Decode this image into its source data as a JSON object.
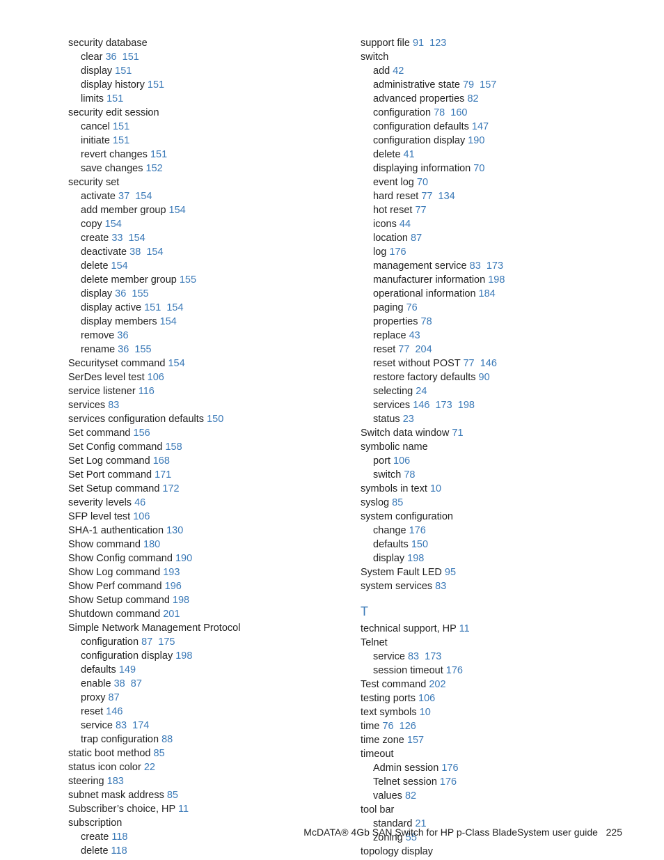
{
  "footer": {
    "text": "McDATA® 4Gb SAN Switch for HP p-Class BladeSystem user guide",
    "pageNum": "225"
  },
  "link_color": "#3a79b7",
  "text_color": "#222222",
  "leftCol": [
    {
      "t": "h",
      "label": "security database"
    },
    {
      "t": "s",
      "label": "clear",
      "pg": [
        "36",
        "151"
      ]
    },
    {
      "t": "s",
      "label": "display",
      "pg": [
        "151"
      ]
    },
    {
      "t": "s",
      "label": "display history",
      "pg": [
        "151"
      ]
    },
    {
      "t": "s",
      "label": "limits",
      "pg": [
        "151"
      ]
    },
    {
      "t": "h",
      "label": "security edit session"
    },
    {
      "t": "s",
      "label": "cancel",
      "pg": [
        "151"
      ]
    },
    {
      "t": "s",
      "label": "initiate",
      "pg": [
        "151"
      ]
    },
    {
      "t": "s",
      "label": "revert changes",
      "pg": [
        "151"
      ]
    },
    {
      "t": "s",
      "label": "save changes",
      "pg": [
        "152"
      ]
    },
    {
      "t": "h",
      "label": "security set"
    },
    {
      "t": "s",
      "label": "activate",
      "pg": [
        "37",
        "154"
      ]
    },
    {
      "t": "s",
      "label": "add member group",
      "pg": [
        "154"
      ]
    },
    {
      "t": "s",
      "label": "copy",
      "pg": [
        "154"
      ]
    },
    {
      "t": "s",
      "label": "create",
      "pg": [
        "33",
        "154"
      ]
    },
    {
      "t": "s",
      "label": "deactivate",
      "pg": [
        "38",
        "154"
      ]
    },
    {
      "t": "s",
      "label": "delete",
      "pg": [
        "154"
      ]
    },
    {
      "t": "s",
      "label": "delete member group",
      "pg": [
        "155"
      ]
    },
    {
      "t": "s",
      "label": "display",
      "pg": [
        "36",
        "155"
      ]
    },
    {
      "t": "s",
      "label": "display active",
      "pg": [
        "151",
        "154"
      ]
    },
    {
      "t": "s",
      "label": "display members",
      "pg": [
        "154"
      ]
    },
    {
      "t": "s",
      "label": "remove",
      "pg": [
        "36"
      ]
    },
    {
      "t": "s",
      "label": "rename",
      "pg": [
        "36",
        "155"
      ]
    },
    {
      "t": "e",
      "label": "Securityset command",
      "pg": [
        "154"
      ]
    },
    {
      "t": "e",
      "label": "SerDes level test",
      "pg": [
        "106"
      ]
    },
    {
      "t": "e",
      "label": "service listener",
      "pg": [
        "116"
      ]
    },
    {
      "t": "e",
      "label": "services",
      "pg": [
        "83"
      ]
    },
    {
      "t": "e",
      "label": "services configuration defaults",
      "pg": [
        "150"
      ]
    },
    {
      "t": "e",
      "label": "Set command",
      "pg": [
        "156"
      ]
    },
    {
      "t": "e",
      "label": "Set Config command",
      "pg": [
        "158"
      ]
    },
    {
      "t": "e",
      "label": "Set Log command",
      "pg": [
        "168"
      ]
    },
    {
      "t": "e",
      "label": "Set Port command",
      "pg": [
        "171"
      ]
    },
    {
      "t": "e",
      "label": "Set Setup command",
      "pg": [
        "172"
      ]
    },
    {
      "t": "e",
      "label": "severity levels",
      "pg": [
        "46"
      ]
    },
    {
      "t": "e",
      "label": "SFP level test",
      "pg": [
        "106"
      ]
    },
    {
      "t": "e",
      "label": "SHA-1 authentication",
      "pg": [
        "130"
      ]
    },
    {
      "t": "e",
      "label": "Show command",
      "pg": [
        "180"
      ]
    },
    {
      "t": "e",
      "label": "Show Config command",
      "pg": [
        "190"
      ]
    },
    {
      "t": "e",
      "label": "Show Log command",
      "pg": [
        "193"
      ]
    },
    {
      "t": "e",
      "label": "Show Perf command",
      "pg": [
        "196"
      ]
    },
    {
      "t": "e",
      "label": "Show Setup command",
      "pg": [
        "198"
      ]
    },
    {
      "t": "e",
      "label": "Shutdown command",
      "pg": [
        "201"
      ]
    },
    {
      "t": "h",
      "label": "Simple Network Management Protocol"
    },
    {
      "t": "s",
      "label": "configuration",
      "pg": [
        "87",
        "175"
      ]
    },
    {
      "t": "s",
      "label": "configuration display",
      "pg": [
        "198"
      ]
    },
    {
      "t": "s",
      "label": "defaults",
      "pg": [
        "149"
      ]
    },
    {
      "t": "s",
      "label": "enable",
      "pg": [
        "38",
        "87"
      ]
    },
    {
      "t": "s",
      "label": "proxy",
      "pg": [
        "87"
      ]
    },
    {
      "t": "s",
      "label": "reset",
      "pg": [
        "146"
      ]
    },
    {
      "t": "s",
      "label": "service",
      "pg": [
        "83",
        "174"
      ]
    },
    {
      "t": "s",
      "label": "trap configuration",
      "pg": [
        "88"
      ]
    },
    {
      "t": "e",
      "label": "static boot method",
      "pg": [
        "85"
      ]
    },
    {
      "t": "e",
      "label": "status icon color",
      "pg": [
        "22"
      ]
    },
    {
      "t": "e",
      "label": "steering",
      "pg": [
        "183"
      ]
    },
    {
      "t": "e",
      "label": "subnet mask address",
      "pg": [
        "85"
      ]
    },
    {
      "t": "e",
      "label": "Subscriber’s choice, HP",
      "pg": [
        "11"
      ]
    },
    {
      "t": "h",
      "label": "subscription"
    },
    {
      "t": "s",
      "label": "create",
      "pg": [
        "118"
      ]
    },
    {
      "t": "s",
      "label": "delete",
      "pg": [
        "118"
      ]
    }
  ],
  "rightCol": [
    {
      "t": "e",
      "label": "support file",
      "pg": [
        "91",
        "123"
      ]
    },
    {
      "t": "h",
      "label": "switch"
    },
    {
      "t": "s",
      "label": "add",
      "pg": [
        "42"
      ]
    },
    {
      "t": "s",
      "label": "administrative state",
      "pg": [
        "79",
        "157"
      ]
    },
    {
      "t": "s",
      "label": "advanced properties",
      "pg": [
        "82"
      ]
    },
    {
      "t": "s",
      "label": "configuration",
      "pg": [
        "78",
        "160"
      ]
    },
    {
      "t": "s",
      "label": "configuration defaults",
      "pg": [
        "147"
      ]
    },
    {
      "t": "s",
      "label": "configuration display",
      "pg": [
        "190"
      ]
    },
    {
      "t": "s",
      "label": "delete",
      "pg": [
        "41"
      ]
    },
    {
      "t": "s",
      "label": "displaying information",
      "pg": [
        "70"
      ]
    },
    {
      "t": "s",
      "label": "event log",
      "pg": [
        "70"
      ]
    },
    {
      "t": "s",
      "label": "hard reset",
      "pg": [
        "77",
        "134"
      ]
    },
    {
      "t": "s",
      "label": "hot reset",
      "pg": [
        "77"
      ]
    },
    {
      "t": "s",
      "label": "icons",
      "pg": [
        "44"
      ]
    },
    {
      "t": "s",
      "label": "location",
      "pg": [
        "87"
      ]
    },
    {
      "t": "s",
      "label": "log",
      "pg": [
        "176"
      ]
    },
    {
      "t": "s",
      "label": "management service",
      "pg": [
        "83",
        "173"
      ]
    },
    {
      "t": "s",
      "label": "manufacturer information",
      "pg": [
        "198"
      ]
    },
    {
      "t": "s",
      "label": "operational information",
      "pg": [
        "184"
      ]
    },
    {
      "t": "s",
      "label": "paging",
      "pg": [
        "76"
      ]
    },
    {
      "t": "s",
      "label": "properties",
      "pg": [
        "78"
      ]
    },
    {
      "t": "s",
      "label": "replace",
      "pg": [
        "43"
      ]
    },
    {
      "t": "s",
      "label": "reset",
      "pg": [
        "77",
        "204"
      ]
    },
    {
      "t": "s",
      "label": "reset without POST",
      "pg": [
        "77",
        "146"
      ]
    },
    {
      "t": "s",
      "label": "restore factory defaults",
      "pg": [
        "90"
      ]
    },
    {
      "t": "s",
      "label": "selecting",
      "pg": [
        "24"
      ]
    },
    {
      "t": "s",
      "label": "services",
      "pg": [
        "146",
        "173",
        "198"
      ]
    },
    {
      "t": "s",
      "label": "status",
      "pg": [
        "23"
      ]
    },
    {
      "t": "e",
      "label": "Switch data window",
      "pg": [
        "71"
      ]
    },
    {
      "t": "h",
      "label": "symbolic name"
    },
    {
      "t": "s",
      "label": "port",
      "pg": [
        "106"
      ]
    },
    {
      "t": "s",
      "label": "switch",
      "pg": [
        "78"
      ]
    },
    {
      "t": "e",
      "label": "symbols in text",
      "pg": [
        "10"
      ]
    },
    {
      "t": "e",
      "label": "syslog",
      "pg": [
        "85"
      ]
    },
    {
      "t": "h",
      "label": "system configuration"
    },
    {
      "t": "s",
      "label": "change",
      "pg": [
        "176"
      ]
    },
    {
      "t": "s",
      "label": "defaults",
      "pg": [
        "150"
      ]
    },
    {
      "t": "s",
      "label": "display",
      "pg": [
        "198"
      ]
    },
    {
      "t": "e",
      "label": "System Fault LED",
      "pg": [
        "95"
      ]
    },
    {
      "t": "e",
      "label": "system services",
      "pg": [
        "83"
      ]
    },
    {
      "t": "section",
      "label": "T"
    },
    {
      "t": "e",
      "label": "technical support, HP",
      "pg": [
        "11"
      ]
    },
    {
      "t": "h",
      "label": "Telnet"
    },
    {
      "t": "s",
      "label": "service",
      "pg": [
        "83",
        "173"
      ]
    },
    {
      "t": "s",
      "label": "session timeout",
      "pg": [
        "176"
      ]
    },
    {
      "t": "e",
      "label": "Test command",
      "pg": [
        "202"
      ]
    },
    {
      "t": "e",
      "label": "testing ports",
      "pg": [
        "106"
      ]
    },
    {
      "t": "e",
      "label": "text symbols",
      "pg": [
        "10"
      ]
    },
    {
      "t": "e",
      "label": "time",
      "pg": [
        "76",
        "126"
      ]
    },
    {
      "t": "e",
      "label": "time zone",
      "pg": [
        "157"
      ]
    },
    {
      "t": "h",
      "label": "timeout"
    },
    {
      "t": "s",
      "label": "Admin session",
      "pg": [
        "176"
      ]
    },
    {
      "t": "s",
      "label": "Telnet session",
      "pg": [
        "176"
      ]
    },
    {
      "t": "s",
      "label": "values",
      "pg": [
        "82"
      ]
    },
    {
      "t": "h",
      "label": "tool bar"
    },
    {
      "t": "s",
      "label": "standard",
      "pg": [
        "21"
      ]
    },
    {
      "t": "s",
      "label": "zoning",
      "pg": [
        "55"
      ]
    },
    {
      "t": "h",
      "label": "topology display"
    }
  ]
}
